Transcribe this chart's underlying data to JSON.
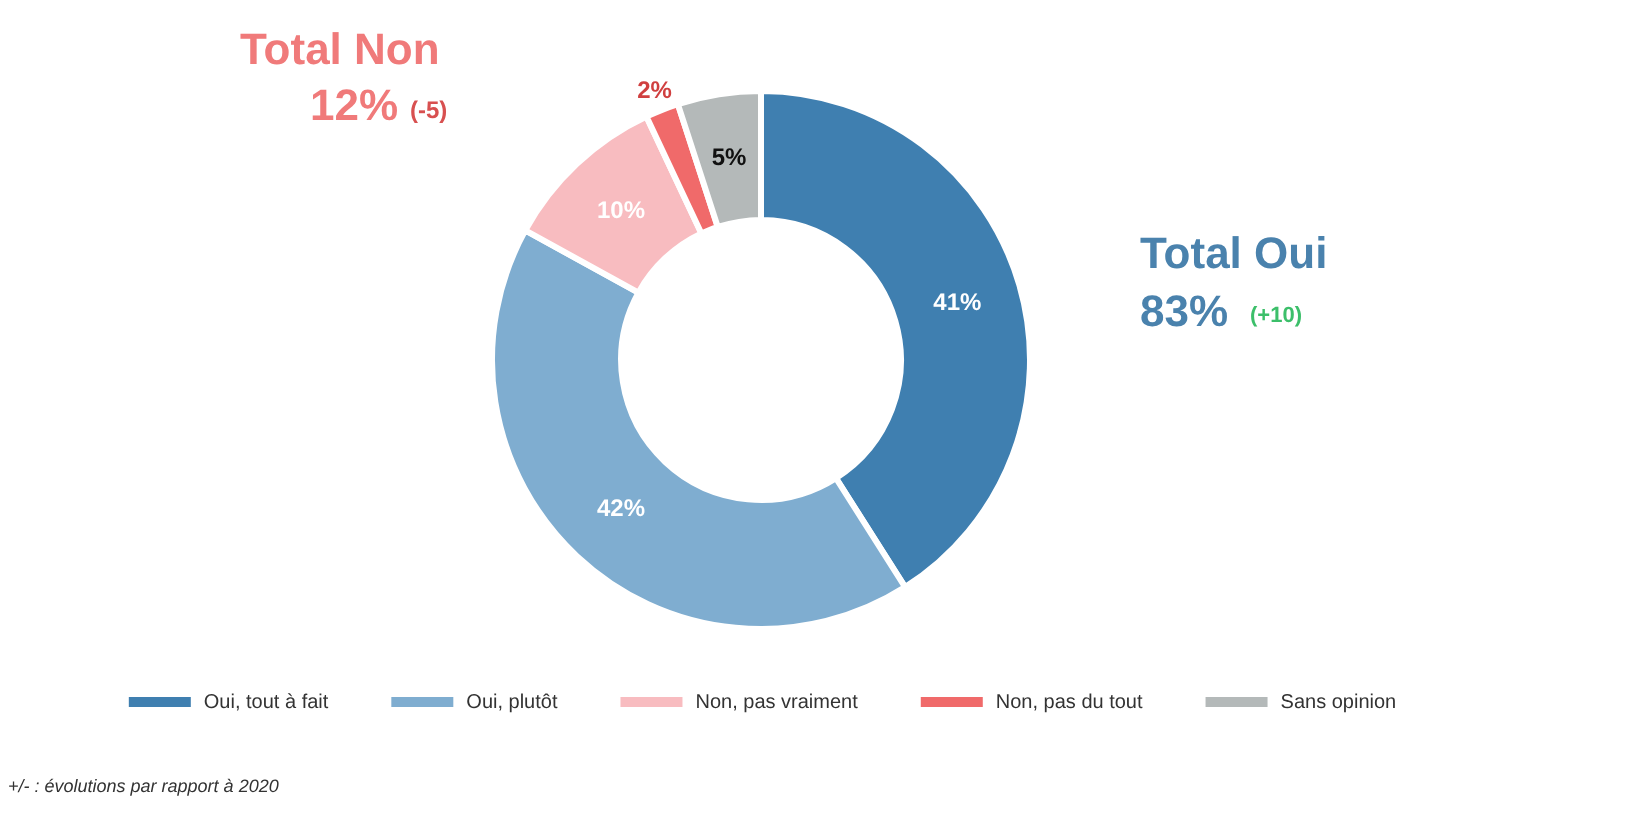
{
  "chart_data": {
    "type": "donut",
    "categories": [
      "Oui, tout à fait",
      "Oui, plutôt",
      "Non, pas vraiment",
      "Non, pas du tout",
      "Sans opinion"
    ],
    "values": [
      41,
      42,
      10,
      2,
      5
    ],
    "colors": [
      "#3f7fb0",
      "#7fadd0",
      "#f8bcc0",
      "#f06a6a",
      "#b4b9b9"
    ],
    "value_labels": [
      "41%",
      "42%",
      "10%",
      "2%",
      "5%"
    ],
    "legend": "bottom",
    "annotations": [
      "Total Non",
      "12%",
      "(-5)",
      "Total Oui",
      "83%",
      "(+10)",
      "+/- : évolutions par rapport à 2020"
    ]
  }
}
